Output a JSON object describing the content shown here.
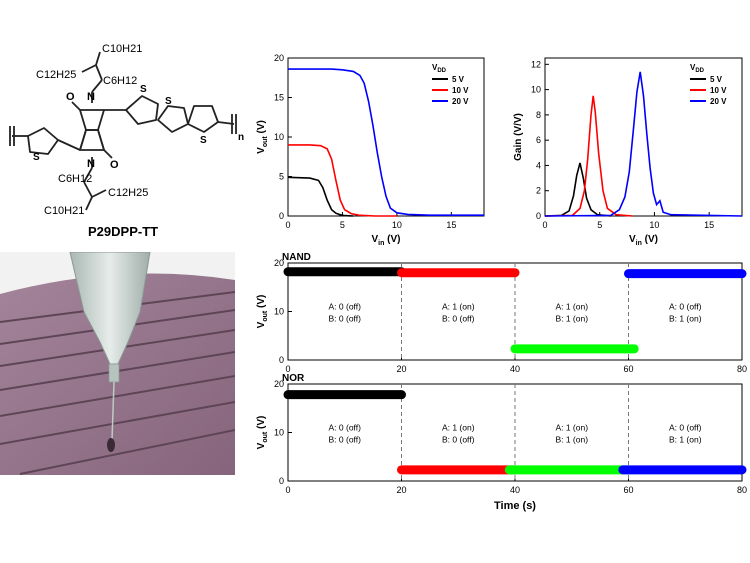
{
  "molecule": {
    "name": "P29DPP-TT",
    "side_top_branch": "C10H21",
    "side_top_long": "C12H25",
    "side_top_link": "C6H12",
    "side_bottom_link": "C6H12",
    "side_bottom_long": "C12H25",
    "side_bottom_branch": "C10H21",
    "n": "n",
    "o": "O",
    "nitrogen": "N",
    "sulfur": "S"
  },
  "chart_data": [
    {
      "type": "line",
      "id": "vtc",
      "xlabel": "Vin (V)",
      "ylabel": "Vout (V)",
      "xlim": [
        0,
        18
      ],
      "ylim": [
        0,
        20
      ],
      "xticks": [
        0,
        5,
        10,
        15
      ],
      "yticks": [
        0,
        5,
        10,
        15,
        20
      ],
      "legend_title": "VDD",
      "legend_position": "top-right",
      "series": [
        {
          "name": "5 V",
          "color": "#000000",
          "x": [
            0,
            1,
            2,
            2.8,
            3.2,
            3.6,
            4.0,
            4.4,
            4.8,
            5.2,
            5.6,
            6
          ],
          "y": [
            4.9,
            4.85,
            4.8,
            4.5,
            3.6,
            2.0,
            0.8,
            0.35,
            0.15,
            0.05,
            0.02,
            0.0
          ]
        },
        {
          "name": "10 V",
          "color": "#ff0000",
          "x": [
            0,
            1,
            2,
            3,
            3.6,
            4.0,
            4.4,
            4.8,
            5.2,
            5.8,
            6.5,
            8,
            10
          ],
          "y": [
            9.0,
            9.0,
            9.0,
            8.9,
            8.5,
            7.2,
            4.5,
            2.0,
            0.8,
            0.3,
            0.1,
            0.0,
            0.0
          ]
        },
        {
          "name": "20 V",
          "color": "#0000ff",
          "x": [
            0,
            2,
            4,
            5,
            6,
            6.6,
            7.0,
            7.4,
            7.8,
            8.2,
            8.6,
            9.0,
            9.4,
            10,
            11,
            13,
            18
          ],
          "y": [
            18.6,
            18.6,
            18.6,
            18.5,
            18.3,
            17.8,
            16.8,
            14.5,
            11.5,
            8.0,
            5.0,
            2.5,
            1.0,
            0.4,
            0.2,
            0.1,
            0.1
          ]
        }
      ]
    },
    {
      "type": "line",
      "id": "gain",
      "xlabel": "Vin (V)",
      "ylabel": "Gain (V/V)",
      "xlim": [
        0,
        18
      ],
      "ylim": [
        0,
        12.5
      ],
      "xticks": [
        0,
        5,
        10,
        15
      ],
      "yticks": [
        0,
        2,
        4,
        6,
        8,
        10,
        12
      ],
      "legend_title": "VDD",
      "legend_position": "top-right",
      "series": [
        {
          "name": "5 V",
          "color": "#000000",
          "x": [
            0,
            1.5,
            2.2,
            2.6,
            2.9,
            3.2,
            3.5,
            3.8,
            4.2,
            4.8,
            6
          ],
          "y": [
            0,
            0.05,
            0.4,
            1.6,
            3.2,
            4.2,
            3.0,
            1.4,
            0.5,
            0.1,
            0
          ]
        },
        {
          "name": "10 V",
          "color": "#ff0000",
          "x": [
            0,
            2.5,
            3.2,
            3.6,
            3.9,
            4.2,
            4.4,
            4.6,
            4.9,
            5.3,
            5.7,
            6.5,
            8
          ],
          "y": [
            0,
            0.05,
            0.6,
            2.0,
            4.5,
            8.0,
            9.5,
            8.2,
            5.0,
            2.0,
            0.6,
            0.1,
            0
          ]
        },
        {
          "name": "20 V",
          "color": "#0000ff",
          "x": [
            0,
            6.0,
            6.8,
            7.3,
            7.7,
            8.1,
            8.4,
            8.7,
            9.0,
            9.3,
            9.6,
            9.9,
            10.2,
            10.5,
            10.8,
            11.5,
            18
          ],
          "y": [
            0,
            0.05,
            0.5,
            1.5,
            3.5,
            7.0,
            9.8,
            11.4,
            9.5,
            6.5,
            3.8,
            1.8,
            0.9,
            1.2,
            0.3,
            0.1,
            0
          ]
        }
      ]
    },
    {
      "type": "line",
      "id": "nand",
      "title": "NAND",
      "xlabel": "",
      "ylabel": "Vout (V)",
      "xlim": [
        0,
        80
      ],
      "ylim": [
        0,
        20
      ],
      "xticks": [
        0,
        20,
        40,
        60,
        80
      ],
      "yticks": [
        0,
        10,
        20
      ],
      "dividers": [
        20,
        40,
        60
      ],
      "segments": [
        {
          "x0": 0,
          "x1": 20,
          "y": 18.2,
          "color": "#000000",
          "a": "A: 0 (off)",
          "b": "B: 0 (off)"
        },
        {
          "x0": 20,
          "x1": 40,
          "y": 18.0,
          "color": "#ff0000",
          "a": "A: 1 (on)",
          "b": "B: 0 (off)"
        },
        {
          "x0": 40,
          "x1": 61,
          "y": 2.3,
          "color": "#00ff00",
          "a": "A: 1 (on)",
          "b": "B: 1 (on)"
        },
        {
          "x0": 60,
          "x1": 80,
          "y": 17.8,
          "color": "#0000ff",
          "a": "A: 0 (off)",
          "b": "B: 1 (on)"
        }
      ]
    },
    {
      "type": "line",
      "id": "nor",
      "title": "NOR",
      "xlabel": "Time (s)",
      "ylabel": "Vout (V)",
      "xlim": [
        0,
        80
      ],
      "ylim": [
        0,
        20
      ],
      "xticks": [
        0,
        20,
        40,
        60,
        80
      ],
      "yticks": [
        0,
        10,
        20
      ],
      "dividers": [
        20,
        40,
        60
      ],
      "segments": [
        {
          "x0": 0,
          "x1": 20,
          "y": 17.8,
          "color": "#000000",
          "a": "A: 0 (off)",
          "b": "B: 0 (off)"
        },
        {
          "x0": 20,
          "x1": 40,
          "y": 2.3,
          "color": "#ff0000",
          "a": "A: 1 (on)",
          "b": "B: 0 (off)"
        },
        {
          "x0": 39,
          "x1": 60,
          "y": 2.3,
          "color": "#00ff00",
          "a": "A: 1 (on)",
          "b": "B: 1 (on)"
        },
        {
          "x0": 59,
          "x1": 80,
          "y": 2.3,
          "color": "#0000ff",
          "a": "A: 0 (off)",
          "b": "B: 1 (on)"
        }
      ]
    }
  ],
  "colors": {
    "substrate": "#9a7a90",
    "substrate_edge": "#6f5368",
    "nozzle": "#c9d4d0"
  }
}
